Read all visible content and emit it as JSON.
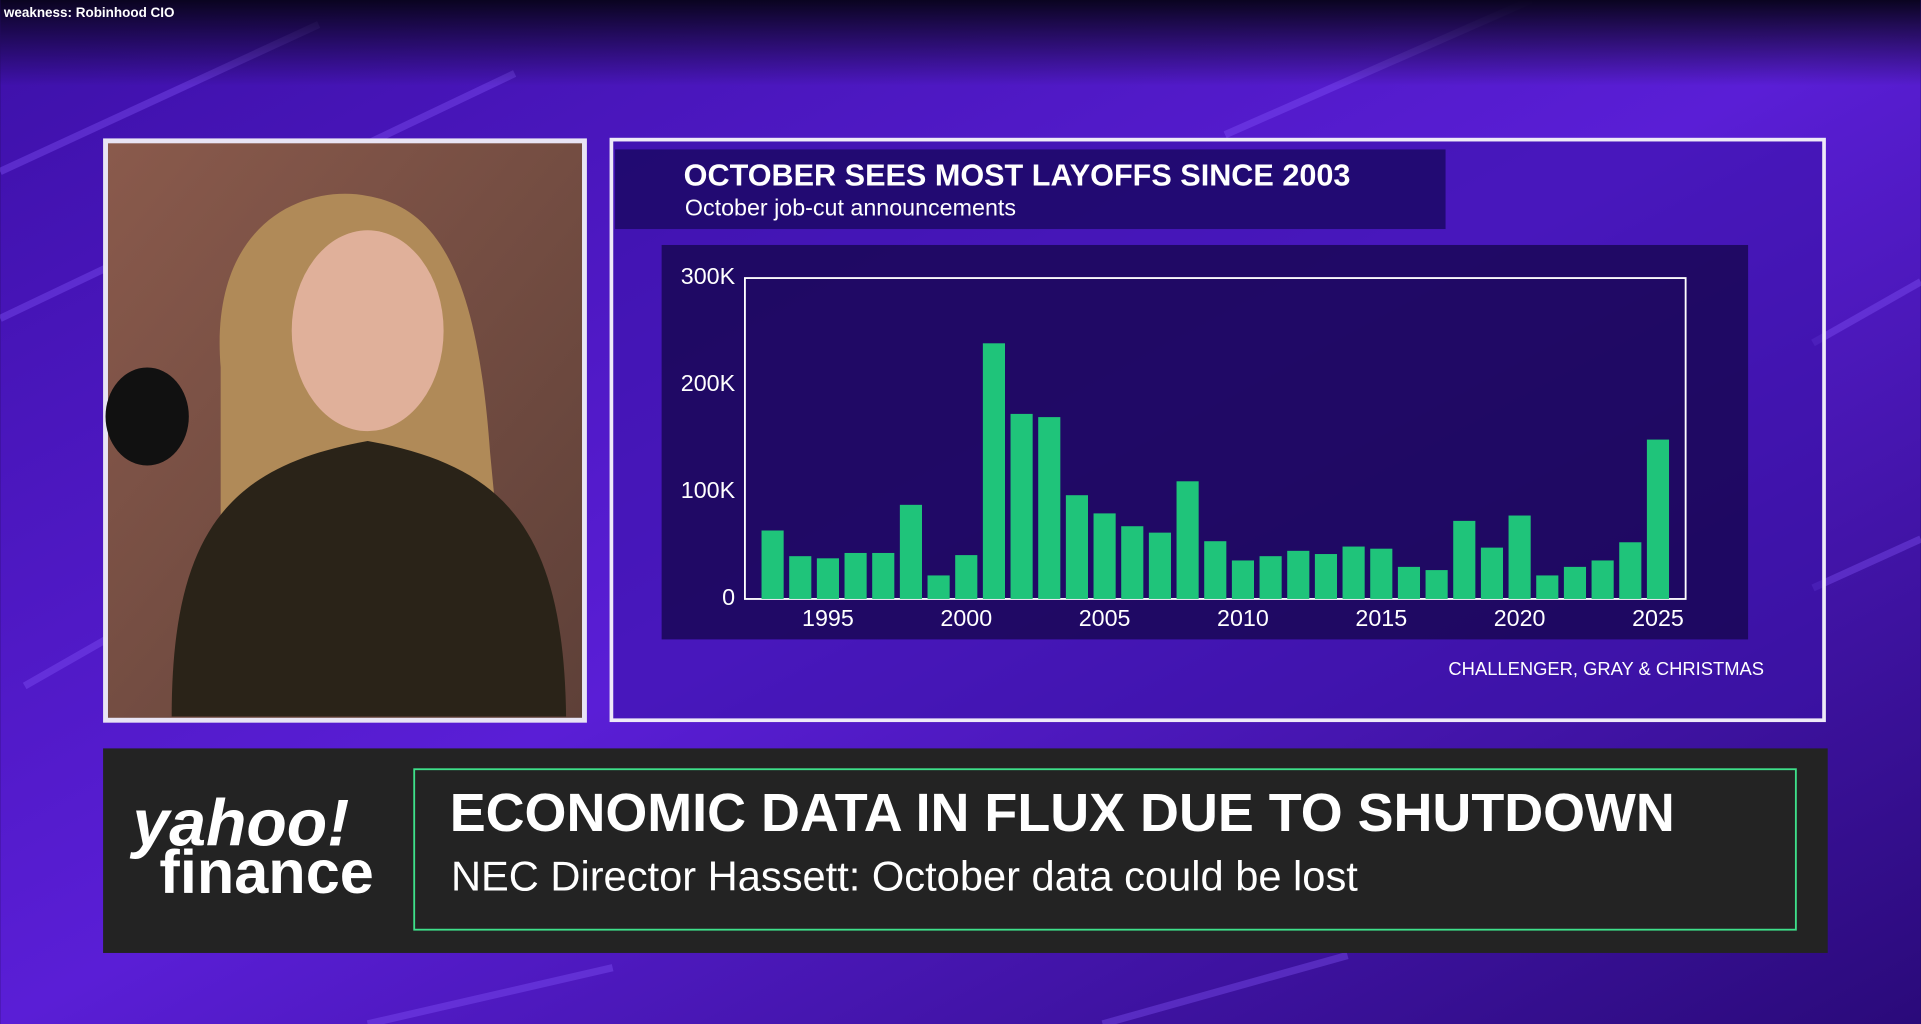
{
  "ticker_text": "weakness: Robinhood CIO",
  "chart_data": {
    "type": "bar",
    "title": "OCTOBER SEES MOST LAYOFFS SINCE 2003",
    "subtitle": "October job-cut announcements",
    "source": "CHALLENGER, GRAY & CHRISTMAS",
    "x": [
      1993,
      1994,
      1995,
      1996,
      1997,
      1998,
      1999,
      2000,
      2001,
      2002,
      2003,
      2004,
      2005,
      2006,
      2007,
      2008,
      2009,
      2010,
      2011,
      2012,
      2013,
      2014,
      2015,
      2016,
      2017,
      2018,
      2019,
      2020,
      2021,
      2022,
      2023,
      2024,
      2025
    ],
    "values": [
      64,
      40,
      38,
      43,
      43,
      88,
      22,
      41,
      239,
      173,
      170,
      97,
      80,
      68,
      62,
      110,
      54,
      36,
      40,
      45,
      42,
      49,
      47,
      30,
      27,
      73,
      48,
      78,
      22,
      30,
      36,
      53,
      149
    ],
    "color": "#1fc47a",
    "xlim": [
      1992,
      2026
    ],
    "ylim": [
      0,
      300
    ],
    "xticks": [
      1995,
      2000,
      2005,
      2010,
      2015,
      2020,
      2025
    ],
    "yticks": [
      0,
      {
        "value": 100,
        "label": "100K"
      },
      {
        "value": 200,
        "label": "200K"
      },
      {
        "value": 300,
        "label": "300K"
      }
    ]
  },
  "lower_third": {
    "logo": [
      "yahoo!",
      "finance"
    ],
    "headline": "ECONOMIC DATA IN FLUX DUE TO SHUTDOWN",
    "subheadline": "NEC Director Hassett: October data could be lost"
  }
}
